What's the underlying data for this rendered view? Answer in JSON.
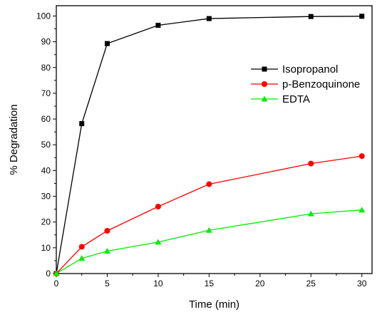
{
  "chart_data": {
    "type": "line",
    "xlabel": "Time (min)",
    "ylabel": "% Degradation",
    "xlim": [
      0,
      31
    ],
    "ylim": [
      0,
      104
    ],
    "xticks": [
      0,
      5,
      10,
      15,
      20,
      25,
      30
    ],
    "yticks": [
      0,
      10,
      20,
      30,
      40,
      50,
      60,
      70,
      80,
      90,
      100
    ],
    "grid": false,
    "legend_position": "top-right",
    "series": [
      {
        "name": "Isopropanol",
        "color": "#000000",
        "marker": "square",
        "x": [
          0,
          2.5,
          5,
          10,
          15,
          25,
          30
        ],
        "y": [
          0,
          58.2,
          89.3,
          96.4,
          99.0,
          99.8,
          99.9
        ]
      },
      {
        "name": "p-Benzoquinone",
        "color": "#ff0000",
        "marker": "circle",
        "x": [
          0,
          2.5,
          5,
          10,
          15,
          25,
          30
        ],
        "y": [
          0,
          10.4,
          16.6,
          26.0,
          34.7,
          42.7,
          45.6
        ]
      },
      {
        "name": "EDTA",
        "color": "#00ee00",
        "marker": "triangle",
        "x": [
          0,
          2.5,
          5,
          10,
          15,
          25,
          30
        ],
        "y": [
          0,
          5.9,
          8.7,
          12.2,
          16.8,
          23.2,
          24.7
        ]
      }
    ]
  }
}
